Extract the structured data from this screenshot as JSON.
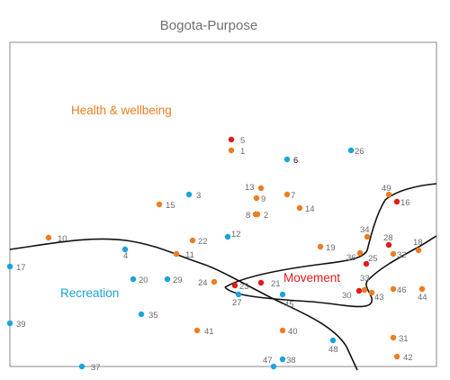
{
  "title": "Bogota-Purpose",
  "regions": {
    "health": {
      "label": "Health & wellbeing",
      "color": "#ee7d22"
    },
    "recreation": {
      "label": "Recreation",
      "color": "#1aa3dd"
    },
    "movement": {
      "label": "Movement",
      "color": "#e01b1b"
    }
  },
  "colors": {
    "orange": "#ee7d22",
    "blue": "#1aa3dd",
    "red": "#e01b1b",
    "frame": "#8a8a8a"
  },
  "points": [
    {
      "id": "1",
      "color": "orange"
    },
    {
      "id": "2",
      "color": "orange"
    },
    {
      "id": "3",
      "color": "blue"
    },
    {
      "id": "4",
      "color": "blue"
    },
    {
      "id": "5",
      "color": "red"
    },
    {
      "id": "6",
      "color": "blue",
      "dark": true
    },
    {
      "id": "7",
      "color": "orange"
    },
    {
      "id": "8",
      "color": "orange"
    },
    {
      "id": "9",
      "color": "orange"
    },
    {
      "id": "10",
      "color": "orange"
    },
    {
      "id": "11",
      "color": "orange"
    },
    {
      "id": "12",
      "color": "blue"
    },
    {
      "id": "13",
      "color": "orange"
    },
    {
      "id": "14",
      "color": "orange"
    },
    {
      "id": "15",
      "color": "orange"
    },
    {
      "id": "16",
      "color": "red"
    },
    {
      "id": "17",
      "color": "blue"
    },
    {
      "id": "18",
      "color": "orange"
    },
    {
      "id": "19",
      "color": "orange"
    },
    {
      "id": "20",
      "color": "blue"
    },
    {
      "id": "21",
      "color": "red"
    },
    {
      "id": "22",
      "color": "orange"
    },
    {
      "id": "23",
      "color": "red"
    },
    {
      "id": "24",
      "color": "orange"
    },
    {
      "id": "25",
      "color": "red"
    },
    {
      "id": "26",
      "color": "blue"
    },
    {
      "id": "27",
      "color": "blue"
    },
    {
      "id": "28",
      "color": "red"
    },
    {
      "id": "29",
      "color": "blue"
    },
    {
      "id": "30",
      "color": "red"
    },
    {
      "id": "31",
      "color": "orange"
    },
    {
      "id": "32",
      "color": "orange"
    },
    {
      "id": "33",
      "color": "orange"
    },
    {
      "id": "34",
      "color": "orange"
    },
    {
      "id": "35",
      "color": "blue"
    },
    {
      "id": "36",
      "color": "orange"
    },
    {
      "id": "37",
      "color": "blue"
    },
    {
      "id": "38",
      "color": "blue"
    },
    {
      "id": "39",
      "color": "blue"
    },
    {
      "id": "40",
      "color": "orange"
    },
    {
      "id": "41",
      "color": "orange"
    },
    {
      "id": "42",
      "color": "orange"
    },
    {
      "id": "43",
      "color": "orange"
    },
    {
      "id": "44",
      "color": "orange"
    },
    {
      "id": "45",
      "color": "blue"
    },
    {
      "id": "46",
      "color": "orange"
    },
    {
      "id": "47",
      "color": "blue"
    },
    {
      "id": "48",
      "color": "blue"
    },
    {
      "id": "49",
      "color": "orange"
    }
  ]
}
